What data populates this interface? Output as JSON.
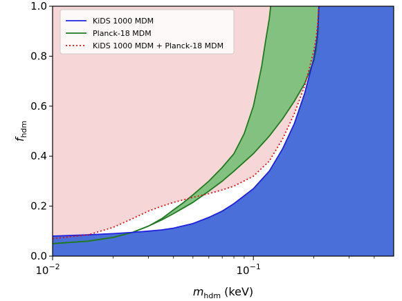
{
  "chart_data": {
    "type": "area",
    "title": "",
    "xlabel": {
      "base": "m",
      "sub": "hdm",
      "unit": " (keV)"
    },
    "ylabel": {
      "base": "f",
      "sub": "hdm"
    },
    "xscale": "log",
    "xlim": [
      0.01,
      0.5
    ],
    "ylim": [
      0.0,
      1.0
    ],
    "grid": false,
    "legend_position": "top-left",
    "x_ticks": [
      {
        "value": 0.01,
        "base": "10",
        "exp": "−2"
      },
      {
        "value": 0.1,
        "base": "10",
        "exp": "−1"
      }
    ],
    "y_ticks": [
      {
        "value": 0.0,
        "label": "0.0"
      },
      {
        "value": 0.2,
        "label": "0.2"
      },
      {
        "value": 0.4,
        "label": "0.4"
      },
      {
        "value": 0.6,
        "label": "0.6"
      },
      {
        "value": 0.8,
        "label": "0.8"
      },
      {
        "value": 1.0,
        "label": "1.0"
      }
    ],
    "series": [
      {
        "name": "KiDS 1000 MDM",
        "style": "solid",
        "color": "#1f1fe0",
        "fill": "#4a6fd8",
        "x": [
          0.01,
          0.015,
          0.02,
          0.025,
          0.03,
          0.035,
          0.04,
          0.05,
          0.06,
          0.07,
          0.08,
          0.1,
          0.12,
          0.14,
          0.16,
          0.18,
          0.2,
          0.205,
          0.208,
          0.21,
          0.211,
          0.212
        ],
        "y": [
          0.08,
          0.085,
          0.09,
          0.095,
          0.1,
          0.105,
          0.112,
          0.13,
          0.155,
          0.18,
          0.21,
          0.27,
          0.34,
          0.43,
          0.53,
          0.65,
          0.79,
          0.84,
          0.88,
          0.93,
          0.97,
          1.0
        ]
      },
      {
        "name": "Planck-18 MDM",
        "style": "solid",
        "color": "#1f7a1f",
        "fill": "#7cc07c",
        "x_lower": [
          0.01,
          0.015,
          0.02,
          0.025,
          0.03,
          0.035,
          0.04,
          0.05,
          0.06,
          0.07,
          0.08,
          0.1,
          0.12,
          0.14,
          0.16,
          0.18,
          0.2,
          0.205,
          0.208,
          0.21,
          0.211,
          0.212
        ],
        "y_lower": [
          0.05,
          0.06,
          0.075,
          0.095,
          0.12,
          0.145,
          0.17,
          0.215,
          0.26,
          0.3,
          0.34,
          0.41,
          0.48,
          0.55,
          0.62,
          0.69,
          0.78,
          0.82,
          0.86,
          0.9,
          0.95,
          1.0
        ],
        "x_upper": [
          0.01,
          0.015,
          0.02,
          0.025,
          0.03,
          0.035,
          0.04,
          0.045,
          0.05,
          0.06,
          0.07,
          0.08,
          0.09,
          0.1,
          0.105,
          0.11,
          0.115,
          0.12,
          0.122
        ],
        "y_upper": [
          0.05,
          0.06,
          0.075,
          0.095,
          0.12,
          0.15,
          0.185,
          0.215,
          0.245,
          0.3,
          0.355,
          0.41,
          0.49,
          0.6,
          0.68,
          0.76,
          0.86,
          0.95,
          1.0
        ]
      },
      {
        "name": "KiDS 1000 MDM + Planck-18 MDM",
        "style": "dotted",
        "color": "#e01010",
        "fill": "#f6d6d6",
        "x": [
          0.01,
          0.015,
          0.02,
          0.025,
          0.03,
          0.035,
          0.04,
          0.05,
          0.06,
          0.07,
          0.08,
          0.1,
          0.12,
          0.14,
          0.16,
          0.18,
          0.2,
          0.205,
          0.208,
          0.21,
          0.212
        ],
        "y": [
          0.07,
          0.085,
          0.115,
          0.15,
          0.18,
          0.2,
          0.215,
          0.235,
          0.25,
          0.265,
          0.28,
          0.32,
          0.38,
          0.47,
          0.57,
          0.68,
          0.82,
          0.87,
          0.91,
          0.95,
          1.0
        ]
      }
    ]
  }
}
